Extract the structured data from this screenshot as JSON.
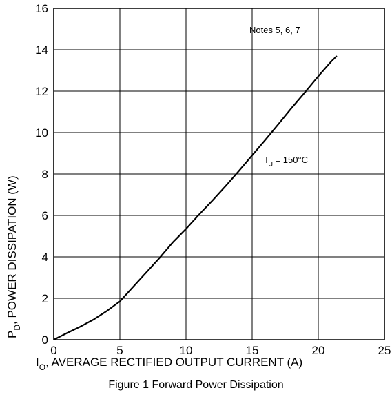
{
  "chart_data": {
    "type": "line",
    "caption": "Figure 1 Forward Power Dissipation",
    "xlabel": {
      "prefix": "I",
      "sub": "O",
      "rest": ", AVERAGE RECTIFIED OUTPUT CURRENT (A)"
    },
    "ylabel": {
      "prefix": "P",
      "sub": "D",
      "rest": ", POWER DISSIPATION (W)"
    },
    "xlim": [
      0,
      25
    ],
    "ylim": [
      0,
      16
    ],
    "xticks": [
      0,
      5,
      10,
      15,
      20,
      25
    ],
    "yticks": [
      0,
      2,
      4,
      6,
      8,
      10,
      12,
      14,
      16
    ],
    "grid": true,
    "notes": "Notes 5, 6, 7",
    "series": [
      {
        "label": {
          "prefix": "T",
          "sub": "J",
          "rest": " = 150°C"
        },
        "x": [
          0,
          1,
          2,
          3,
          4,
          5,
          6,
          7,
          8,
          9,
          10,
          11,
          12,
          13,
          14,
          15,
          16,
          17,
          18,
          19,
          20,
          21,
          21.4
        ],
        "y": [
          0,
          0.32,
          0.63,
          0.97,
          1.38,
          1.85,
          2.55,
          3.25,
          3.95,
          4.7,
          5.35,
          6.05,
          6.72,
          7.42,
          8.15,
          8.9,
          9.65,
          10.42,
          11.2,
          11.95,
          12.72,
          13.45,
          13.7
        ]
      }
    ]
  }
}
